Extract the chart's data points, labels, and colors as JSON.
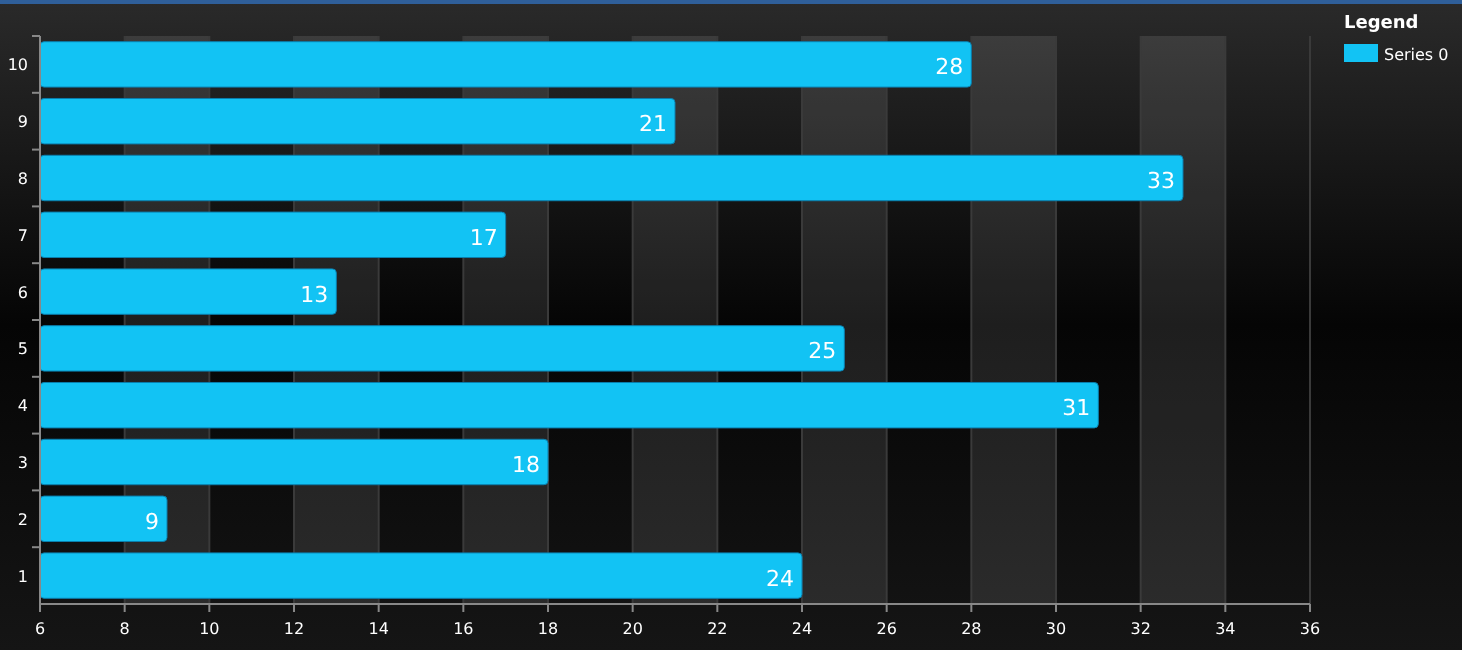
{
  "chart_data": {
    "type": "bar",
    "orientation": "horizontal",
    "legend_title": "Legend",
    "categories": [
      "10",
      "9",
      "8",
      "7",
      "6",
      "5",
      "4",
      "3",
      "2",
      "1"
    ],
    "series": [
      {
        "name": "Series 0",
        "color": "#12c3f4",
        "values": [
          28,
          21,
          33,
          17,
          13,
          25,
          31,
          18,
          9,
          24
        ]
      }
    ],
    "xlim": [
      6,
      36
    ],
    "xticks": [
      6,
      8,
      10,
      12,
      14,
      16,
      18,
      20,
      22,
      24,
      26,
      28,
      30,
      32,
      34,
      36
    ],
    "grid": "x",
    "legend": "top right",
    "data_labels": true
  }
}
